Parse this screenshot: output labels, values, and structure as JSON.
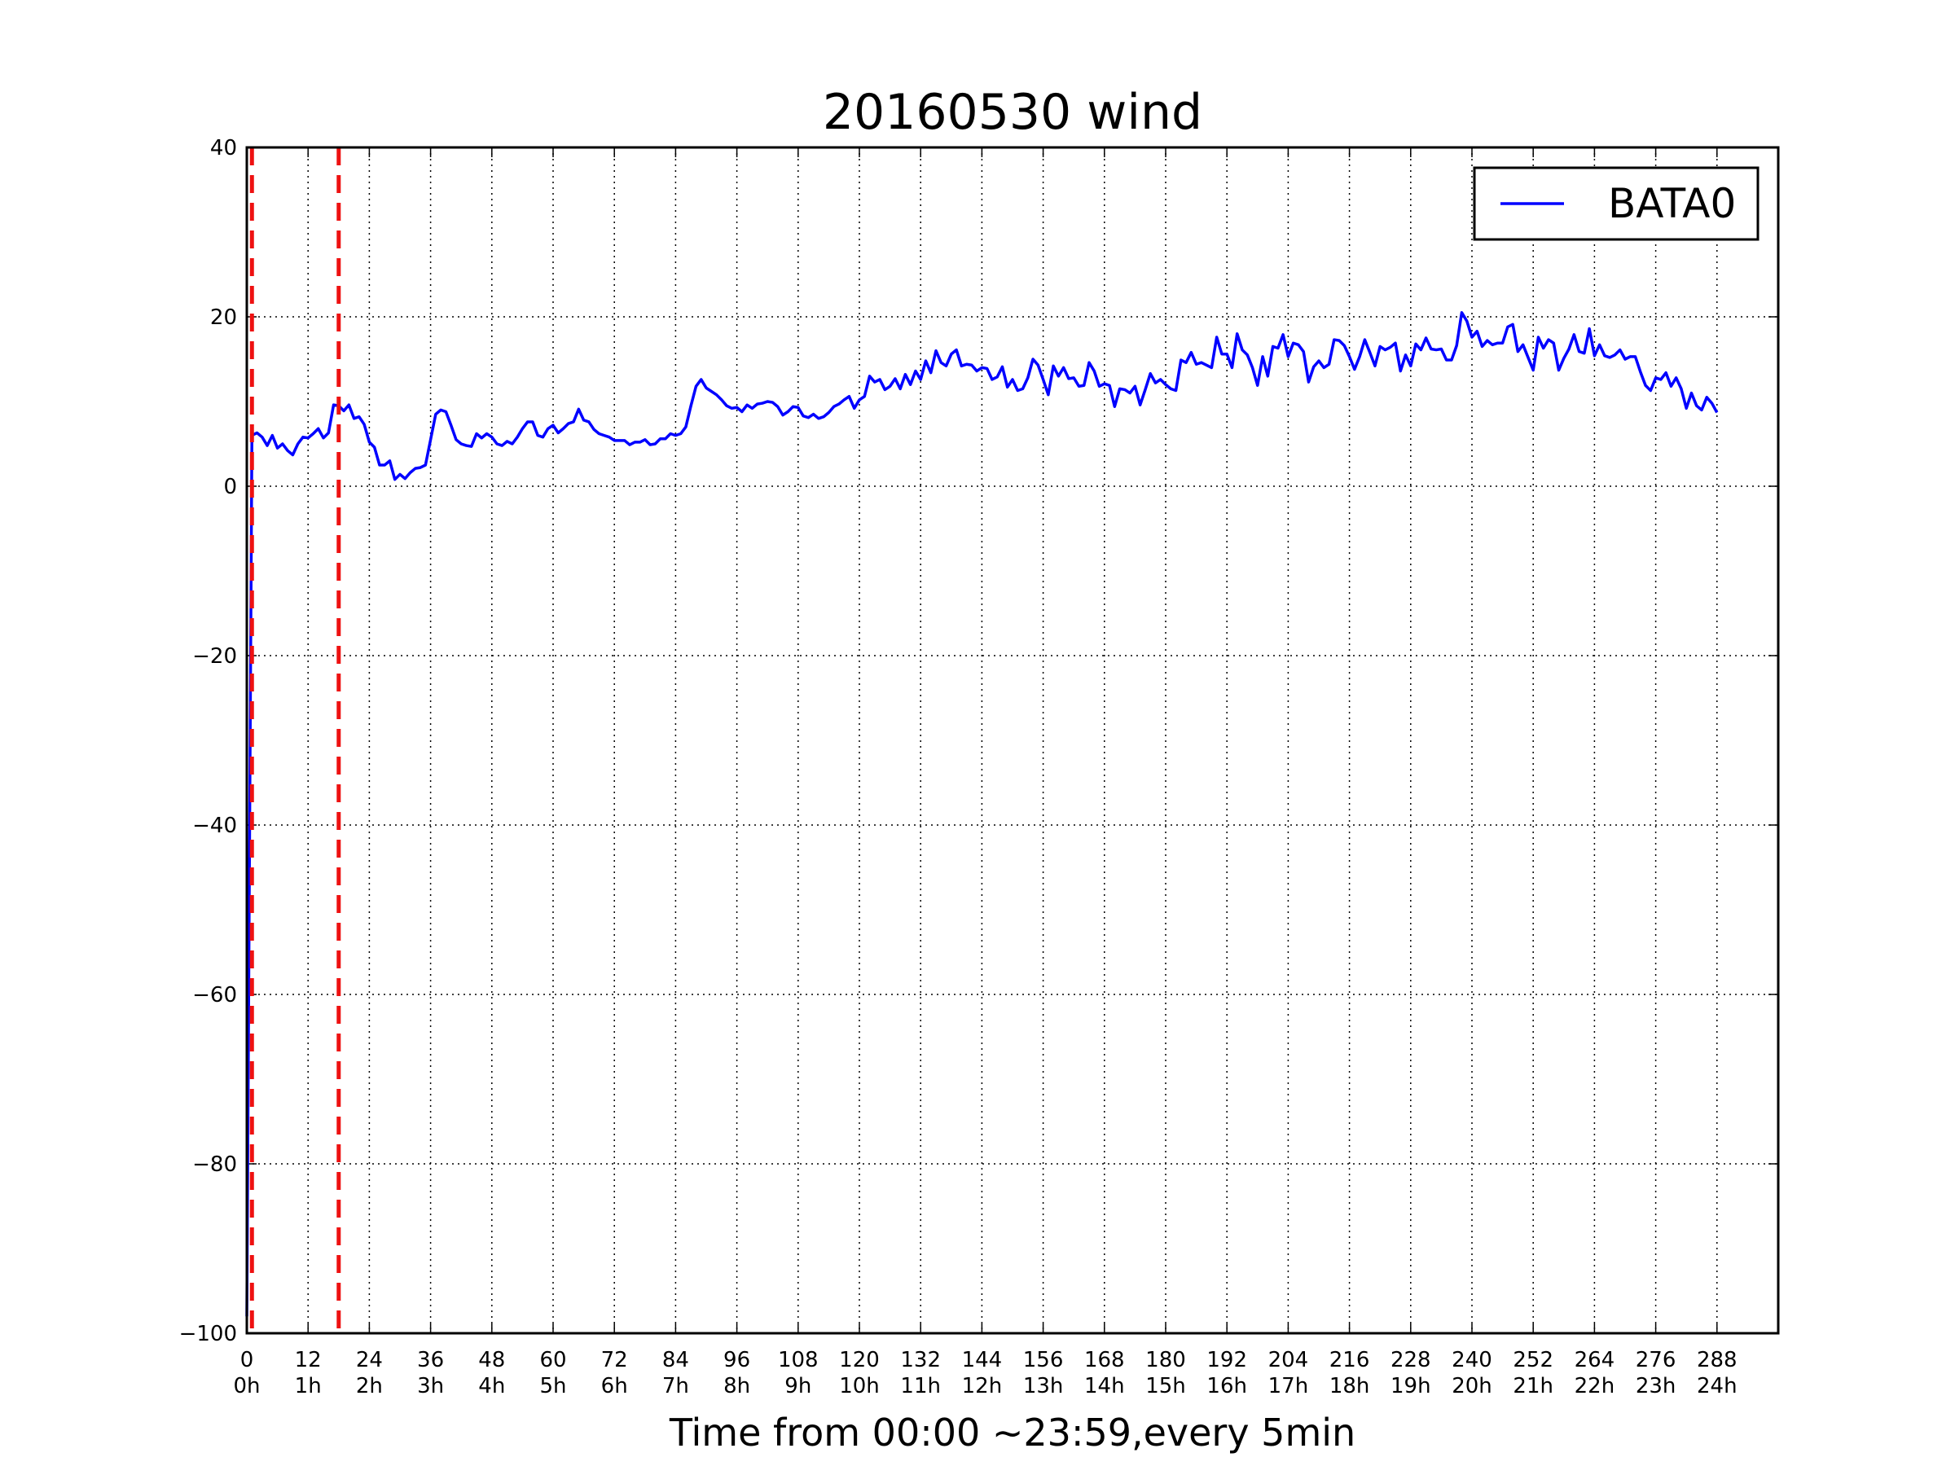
{
  "chart_data": {
    "type": "line",
    "title": "20160530 wind",
    "x_label": "Time from 00:00 ~23:59,every 5min",
    "xlim": [
      0,
      300
    ],
    "xticks": [
      0,
      12,
      24,
      36,
      48,
      60,
      72,
      84,
      96,
      108,
      120,
      132,
      144,
      156,
      168,
      180,
      192,
      204,
      216,
      228,
      240,
      252,
      264,
      276,
      288
    ],
    "xtick_hours": [
      "0h",
      "1h",
      "2h",
      "3h",
      "4h",
      "5h",
      "6h",
      "7h",
      "8h",
      "9h",
      "10h",
      "11h",
      "12h",
      "13h",
      "14h",
      "15h",
      "16h",
      "17h",
      "18h",
      "19h",
      "20h",
      "21h",
      "22h",
      "23h",
      "24h"
    ],
    "ylim": [
      -100,
      40
    ],
    "yticks": [
      {
        "value": -100,
        "label": "−100"
      },
      {
        "value": -80,
        "label": "−80"
      },
      {
        "value": -60,
        "label": "−60"
      },
      {
        "value": -40,
        "label": "−40"
      },
      {
        "value": -20,
        "label": "−20"
      },
      0,
      20,
      40
    ],
    "grid": true,
    "legend": "upper right",
    "vlines": {
      "x": [
        1,
        18
      ],
      "color": "#ee1111",
      "style": "dashed"
    },
    "series": [
      {
        "name": "BATA0",
        "color": "#0000ff",
        "values": [
          -98,
          6,
          6.3,
          5.8,
          4.8,
          6.0,
          4.5,
          5.0,
          4.2,
          3.7,
          5.0,
          5.8,
          5.7,
          6.2,
          6.8,
          5.7,
          6.3,
          9.6,
          9.5,
          8.9,
          9.6,
          8.0,
          8.2,
          7.3,
          5.2,
          4.6,
          2.5,
          2.5,
          3.0,
          0.8,
          1.4,
          0.9,
          1.6,
          2.1,
          2.2,
          2.5,
          5.5,
          8.5,
          9.0,
          8.8,
          7.2,
          5.5,
          5.0,
          4.8,
          4.7,
          6.2,
          5.7,
          6.2,
          5.8,
          5.0,
          4.8,
          5.3,
          5.0,
          5.8,
          6.8,
          7.6,
          7.6,
          6.0,
          5.8,
          6.8,
          7.2,
          6.3,
          6.8,
          7.4,
          7.6,
          9.1,
          7.8,
          7.6,
          6.7,
          6.2,
          6.0,
          5.8,
          5.4,
          5.4,
          5.4,
          4.9,
          5.2,
          5.2,
          5.5,
          4.9,
          5.0,
          5.6,
          5.6,
          6.2,
          6.0,
          6.2,
          7.0,
          9.5,
          11.8,
          12.6,
          11.6,
          11.2,
          10.8,
          10.2,
          9.5,
          9.2,
          9.3,
          8.8,
          9.6,
          9.2,
          9.7,
          9.8,
          10.0,
          9.9,
          9.4,
          8.4,
          8.8,
          9.4,
          9.3,
          8.3,
          8.1,
          8.5,
          8.0,
          8.2,
          8.7,
          9.4,
          9.7,
          10.2,
          10.6,
          9.2,
          10.2,
          10.6,
          13.0,
          12.3,
          12.6,
          11.4,
          11.8,
          12.7,
          11.5,
          13.2,
          12.0,
          13.6,
          12.6,
          14.8,
          13.4,
          16.0,
          14.6,
          14.2,
          15.6,
          16.1,
          14.2,
          14.4,
          14.3,
          13.6,
          14.0,
          13.9,
          12.6,
          12.9,
          14.1,
          11.7,
          12.6,
          11.3,
          11.5,
          12.8,
          15.0,
          14.3,
          12.6,
          10.8,
          14.2,
          13.0,
          14.0,
          12.7,
          12.8,
          11.8,
          11.9,
          14.6,
          13.6,
          11.8,
          12.1,
          11.9,
          9.4,
          11.5,
          11.4,
          11.0,
          11.8,
          9.6,
          11.4,
          13.3,
          12.2,
          12.6,
          12.0,
          11.5,
          11.3,
          14.9,
          14.6,
          15.8,
          14.4,
          14.6,
          14.3,
          14.0,
          17.6,
          15.6,
          15.6,
          14.0,
          18.0,
          16.1,
          15.5,
          14.0,
          11.9,
          15.3,
          13.0,
          16.5,
          16.3,
          17.9,
          15.3,
          16.9,
          16.7,
          15.9,
          12.3,
          14.1,
          14.8,
          14.0,
          14.4,
          17.3,
          17.2,
          16.6,
          15.3,
          13.8,
          15.3,
          17.3,
          15.8,
          14.2,
          16.5,
          16.1,
          16.4,
          16.9,
          13.6,
          15.5,
          14.2,
          16.8,
          16.1,
          17.5,
          16.2,
          16.1,
          16.2,
          14.9,
          14.9,
          16.6,
          20.5,
          19.5,
          17.6,
          18.3,
          16.5,
          17.2,
          16.7,
          16.9,
          16.9,
          18.8,
          19.1,
          15.9,
          16.7,
          15.2,
          13.7,
          17.6,
          16.3,
          17.3,
          16.9,
          13.7,
          15.1,
          16.2,
          17.9,
          15.9,
          15.7,
          18.6,
          15.4,
          16.7,
          15.4,
          15.2,
          15.5,
          16.1,
          15.0,
          15.3,
          15.3,
          13.5,
          11.9,
          11.3,
          12.8,
          12.6,
          13.4,
          11.8,
          12.8,
          11.5,
          9.2,
          11.0,
          9.5,
          9.0,
          10.5,
          9.8,
          8.7
        ]
      }
    ]
  }
}
